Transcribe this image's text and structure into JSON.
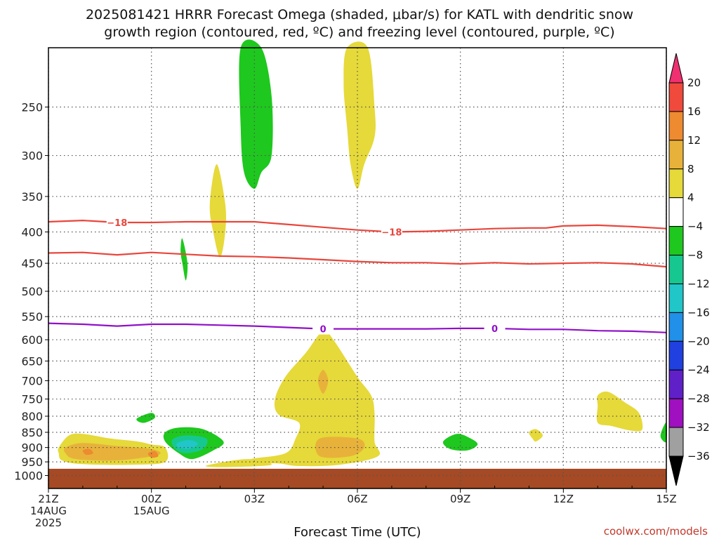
{
  "title": {
    "line1": "2025081421 HRRR Forecast Omega (shaded, μbar/s) for KATL with dendritic snow",
    "line2": "growth region (contoured, red, ºC) and freezing level (contoured, purple, ºC)"
  },
  "credit": "coolwx.com/models",
  "chart_data": {
    "type": "area",
    "title": "2025081421 HRRR Forecast Omega (shaded, μbar/s) for KATL with dendritic snow growth region (contoured, red, ºC) and freezing level (contoured, purple, ºC)",
    "xlabel": "Forecast Time (UTC)",
    "ylabel": "",
    "x_range_hours": [
      0,
      18
    ],
    "y_scale": "log-pressure",
    "y_range_hPa": [
      1050,
      200
    ],
    "grid": true,
    "y_ticks": [
      250,
      300,
      350,
      400,
      450,
      500,
      550,
      600,
      650,
      700,
      750,
      800,
      850,
      900,
      950,
      1000
    ],
    "x_ticks": [
      {
        "hour": 0,
        "label": "21Z",
        "sub1": "14AUG",
        "sub2": "2025"
      },
      {
        "hour": 3,
        "label": "00Z",
        "sub1": "15AUG",
        "sub2": ""
      },
      {
        "hour": 6,
        "label": "03Z",
        "sub1": "",
        "sub2": ""
      },
      {
        "hour": 9,
        "label": "06Z",
        "sub1": "",
        "sub2": ""
      },
      {
        "hour": 12,
        "label": "09Z",
        "sub1": "",
        "sub2": ""
      },
      {
        "hour": 15,
        "label": "12Z",
        "sub1": "",
        "sub2": ""
      },
      {
        "hour": 18,
        "label": "15Z",
        "sub1": "",
        "sub2": ""
      }
    ],
    "colorbar": {
      "labels": [
        "20",
        "16",
        "12",
        "8",
        "4",
        "−4",
        "−8",
        "−12",
        "−16",
        "−20",
        "−24",
        "−28",
        "−32",
        "−36"
      ],
      "bins": [
        {
          "color": "#f03070"
        },
        {
          "color": "#f04a3c"
        },
        {
          "color": "#ee8a30"
        },
        {
          "color": "#e8b23a"
        },
        {
          "color": "#e6d93a"
        },
        {
          "color": "#ffffff"
        },
        {
          "color": "#1ec81e"
        },
        {
          "color": "#16c890"
        },
        {
          "color": "#20c6c8"
        },
        {
          "color": "#2090e8"
        },
        {
          "color": "#2040e0"
        },
        {
          "color": "#6020c8"
        },
        {
          "color": "#a010c0"
        },
        {
          "color": "#a0a0a0"
        },
        {
          "color": "#000000"
        }
      ]
    },
    "contours": [
      {
        "name": "dendritic-upper-minus18",
        "color": "#e8463c",
        "label": "−18",
        "points": [
          [
            0,
            385
          ],
          [
            1,
            383
          ],
          [
            2,
            386
          ],
          [
            3,
            386
          ],
          [
            4,
            385
          ],
          [
            5,
            385
          ],
          [
            6,
            385
          ],
          [
            7,
            389
          ],
          [
            8,
            393
          ],
          [
            9,
            397
          ],
          [
            10,
            400
          ],
          [
            11,
            399
          ],
          [
            12,
            397
          ],
          [
            13,
            395
          ],
          [
            14,
            394
          ],
          [
            14.5,
            394
          ],
          [
            15,
            391
          ],
          [
            16,
            390
          ],
          [
            17,
            392
          ],
          [
            18,
            395
          ]
        ],
        "label_hours": [
          2,
          10
        ]
      },
      {
        "name": "dendritic-lower-minus12",
        "color": "#e8463c",
        "label": "",
        "points": [
          [
            0,
            433
          ],
          [
            1,
            432
          ],
          [
            2,
            436
          ],
          [
            3,
            432
          ],
          [
            4,
            435
          ],
          [
            5,
            438
          ],
          [
            6,
            439
          ],
          [
            7,
            441
          ],
          [
            8,
            444
          ],
          [
            9,
            447
          ],
          [
            10,
            449
          ],
          [
            11,
            449
          ],
          [
            12,
            451
          ],
          [
            13,
            449
          ],
          [
            14,
            451
          ],
          [
            15,
            450
          ],
          [
            16,
            449
          ],
          [
            17,
            451
          ],
          [
            18,
            456
          ]
        ],
        "label_hours": []
      },
      {
        "name": "freezing-level-0",
        "color": "#9010c8",
        "label": "0",
        "points": [
          [
            0,
            564
          ],
          [
            1,
            566
          ],
          [
            2,
            570
          ],
          [
            3,
            566
          ],
          [
            4,
            566
          ],
          [
            5,
            568
          ],
          [
            6,
            570
          ],
          [
            7,
            573
          ],
          [
            8,
            576
          ],
          [
            9,
            576
          ],
          [
            10,
            576
          ],
          [
            11,
            576
          ],
          [
            12,
            575
          ],
          [
            13,
            575
          ],
          [
            14,
            577
          ],
          [
            15,
            577
          ],
          [
            16,
            580
          ],
          [
            17,
            581
          ],
          [
            18,
            584
          ]
        ],
        "label_hours": [
          8,
          13
        ]
      }
    ],
    "shaded_regions": [
      {
        "name": "omega-green-upper",
        "level": "-4 to -8",
        "color": "#1ec81e",
        "points": [
          [
            5.6,
            200
          ],
          [
            6.2,
            200
          ],
          [
            6.5,
            240
          ],
          [
            6.5,
            300
          ],
          [
            6.2,
            320
          ],
          [
            6.0,
            340
          ],
          [
            5.7,
            320
          ],
          [
            5.6,
            270
          ]
        ]
      },
      {
        "name": "omega-yellow-upper",
        "level": "4 to 8",
        "color": "#e6d93a",
        "points": [
          [
            8.7,
            200
          ],
          [
            9.3,
            200
          ],
          [
            9.5,
            250
          ],
          [
            9.5,
            280
          ],
          [
            9.2,
            310
          ],
          [
            9.0,
            340
          ],
          [
            8.8,
            310
          ],
          [
            8.7,
            270
          ],
          [
            8.6,
            230
          ]
        ]
      },
      {
        "name": "omega-yellow-mid",
        "level": "4 to 8",
        "color": "#e6d93a",
        "points": [
          [
            4.9,
            310
          ],
          [
            5.15,
            360
          ],
          [
            5.15,
            400
          ],
          [
            5.0,
            440
          ],
          [
            4.8,
            400
          ],
          [
            4.7,
            360
          ]
        ]
      },
      {
        "name": "omega-green-mid",
        "level": "-4 to -8",
        "color": "#1ec81e",
        "points": [
          [
            3.9,
            410
          ],
          [
            4.05,
            450
          ],
          [
            4.0,
            480
          ],
          [
            3.9,
            450
          ],
          [
            3.85,
            430
          ]
        ]
      },
      {
        "name": "omega-yellow-column",
        "level": "4 to 8",
        "color": "#e6d93a",
        "points": [
          [
            8.0,
            580
          ],
          [
            8.3,
            600
          ],
          [
            9.0,
            690
          ],
          [
            9.4,
            740
          ],
          [
            9.5,
            790
          ],
          [
            9.5,
            880
          ],
          [
            9.6,
            930
          ],
          [
            8.5,
            960
          ],
          [
            7.3,
            965
          ],
          [
            6.6,
            955
          ],
          [
            5.5,
            962
          ],
          [
            5.9,
            940
          ],
          [
            6.9,
            920
          ],
          [
            7.2,
            870
          ],
          [
            7.3,
            820
          ],
          [
            6.7,
            795
          ],
          [
            6.6,
            750
          ],
          [
            6.9,
            690
          ],
          [
            7.5,
            630
          ]
        ]
      },
      {
        "name": "omega-orange-column",
        "level": "8 to 12",
        "color": "#e8b23a",
        "points": [
          [
            8.0,
            672
          ],
          [
            8.15,
            700
          ],
          [
            8.0,
            735
          ],
          [
            7.85,
            700
          ]
        ]
      },
      {
        "name": "omega-orange-low",
        "level": "8 to 12",
        "color": "#e8b23a",
        "points": [
          [
            7.9,
            870
          ],
          [
            9.0,
            870
          ],
          [
            9.2,
            900
          ],
          [
            8.8,
            930
          ],
          [
            7.9,
            930
          ]
        ]
      },
      {
        "name": "omega-yellow-tail",
        "level": "4 to 8",
        "color": "#e6d93a",
        "points": [
          [
            4.7,
            960
          ],
          [
            5.8,
            940
          ],
          [
            6.5,
            960
          ],
          [
            5.5,
            968
          ],
          [
            4.7,
            968
          ]
        ]
      },
      {
        "name": "omega-yellow-left",
        "level": "4 to 8",
        "color": "#e6d93a",
        "points": [
          [
            0.3,
            900
          ],
          [
            0.6,
            860
          ],
          [
            1.0,
            855
          ],
          [
            1.8,
            870
          ],
          [
            2.6,
            880
          ],
          [
            3.0,
            890
          ],
          [
            3.4,
            900
          ],
          [
            3.4,
            950
          ],
          [
            2.5,
            960
          ],
          [
            1.0,
            958
          ],
          [
            0.4,
            945
          ],
          [
            0.3,
            920
          ]
        ]
      },
      {
        "name": "omega-orange-left",
        "level": "8 to 12",
        "color": "#e8b23a",
        "points": [
          [
            0.5,
            900
          ],
          [
            1.0,
            885
          ],
          [
            2.0,
            895
          ],
          [
            3.0,
            905
          ],
          [
            3.2,
            925
          ],
          [
            2.0,
            945
          ],
          [
            0.8,
            940
          ],
          [
            0.5,
            920
          ]
        ]
      },
      {
        "name": "omega-red-left-1",
        "level": "12 to 16",
        "color": "#ee8a30",
        "points": [
          [
            1.0,
            910
          ],
          [
            1.2,
            905
          ],
          [
            1.3,
            920
          ],
          [
            1.1,
            925
          ]
        ]
      },
      {
        "name": "omega-red-left-2",
        "level": "12 to 16",
        "color": "#ee8a30",
        "points": [
          [
            2.9,
            920
          ],
          [
            3.1,
            912
          ],
          [
            3.2,
            930
          ],
          [
            3.0,
            935
          ]
        ]
      },
      {
        "name": "omega-green-small-left",
        "level": "-4 to -8",
        "color": "#1ec81e",
        "points": [
          [
            2.6,
            805
          ],
          [
            3.0,
            790
          ],
          [
            3.1,
            805
          ],
          [
            2.8,
            820
          ],
          [
            2.6,
            815
          ]
        ]
      },
      {
        "name": "omega-green-low",
        "level": "-4 to -8",
        "color": "#1ec81e",
        "points": [
          [
            3.4,
            850
          ],
          [
            3.8,
            835
          ],
          [
            4.5,
            840
          ],
          [
            5.1,
            880
          ],
          [
            4.8,
            910
          ],
          [
            4.2,
            940
          ],
          [
            3.8,
            920
          ],
          [
            3.4,
            880
          ]
        ]
      },
      {
        "name": "omega-teal-low",
        "level": "-8 to -12",
        "color": "#16c890",
        "points": [
          [
            3.6,
            875
          ],
          [
            4.0,
            860
          ],
          [
            4.6,
            870
          ],
          [
            4.5,
            905
          ],
          [
            4.0,
            920
          ],
          [
            3.7,
            905
          ]
        ]
      },
      {
        "name": "omega-cyan-low",
        "level": "-12 to -16",
        "color": "#20c6c8",
        "points": [
          [
            3.75,
            885
          ],
          [
            4.1,
            875
          ],
          [
            4.35,
            888
          ],
          [
            4.1,
            905
          ],
          [
            3.8,
            900
          ]
        ]
      },
      {
        "name": "omega-green-right",
        "level": "-4 to -8",
        "color": "#1ec81e",
        "points": [
          [
            11.5,
            880
          ],
          [
            11.9,
            855
          ],
          [
            12.3,
            870
          ],
          [
            12.5,
            890
          ],
          [
            12.2,
            910
          ],
          [
            11.7,
            905
          ]
        ]
      },
      {
        "name": "omega-yellow-small",
        "level": "4 to 8",
        "color": "#e6d93a",
        "points": [
          [
            14.0,
            850
          ],
          [
            14.2,
            840
          ],
          [
            14.4,
            860
          ],
          [
            14.2,
            880
          ],
          [
            14.1,
            870
          ]
        ]
      },
      {
        "name": "omega-yellow-right",
        "level": "4 to 8",
        "color": "#e6d93a",
        "points": [
          [
            16.0,
            740
          ],
          [
            16.3,
            730
          ],
          [
            16.8,
            760
          ],
          [
            17.2,
            790
          ],
          [
            17.3,
            840
          ],
          [
            17.0,
            845
          ],
          [
            16.4,
            830
          ],
          [
            16.0,
            820
          ],
          [
            16.0,
            770
          ]
        ]
      },
      {
        "name": "omega-green-edge",
        "level": "-4 to -8",
        "color": "#1ec81e",
        "points": [
          [
            17.85,
            850
          ],
          [
            18.0,
            820
          ],
          [
            18.0,
            880
          ],
          [
            17.85,
            870
          ]
        ]
      }
    ],
    "ground_level_hPa": 975
  }
}
